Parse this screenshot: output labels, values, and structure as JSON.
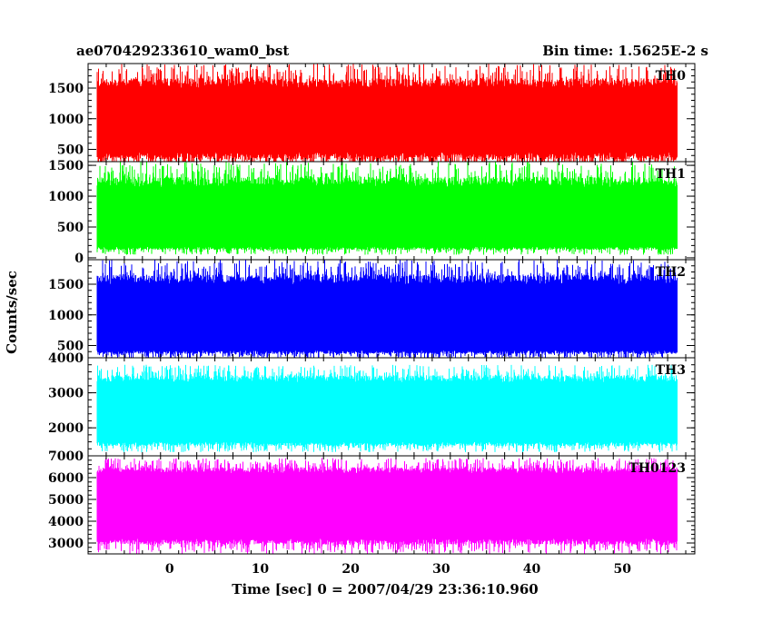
{
  "chart_data": {
    "type": "line",
    "title_left": "ae070429233610_wam0_bst",
    "title_right": "Bin time: 1.5625E-2 s",
    "xlabel": "Time [sec] 0 = 2007/04/29 23:36:10.960",
    "ylabel": "Counts/sec",
    "xlim": [
      -9,
      58
    ],
    "x_ticks": [
      0,
      10,
      20,
      30,
      40,
      50
    ],
    "x_range_data": [
      -8,
      56
    ],
    "grid": false,
    "panels": [
      {
        "name": "TH0",
        "color": "#ff0000",
        "ylim": [
          300,
          1900
        ],
        "y_ticks": [
          500,
          1000,
          1500
        ],
        "band": {
          "min": 150,
          "max": 1900,
          "core_low": 450,
          "core_high": 1500
        }
      },
      {
        "name": "TH1",
        "color": "#00ff00",
        "ylim": [
          -30,
          1560
        ],
        "y_ticks": [
          0,
          500,
          1000,
          1500
        ],
        "band": {
          "min": 50,
          "max": 1560,
          "core_low": 180,
          "core_high": 1150
        }
      },
      {
        "name": "TH2",
        "color": "#0000ff",
        "ylim": [
          300,
          1900
        ],
        "y_ticks": [
          500,
          1000,
          1500
        ],
        "band": {
          "min": 280,
          "max": 1900,
          "core_low": 420,
          "core_high": 1500
        }
      },
      {
        "name": "TH3",
        "color": "#00ffff",
        "ylim": [
          1200,
          4000
        ],
        "y_ticks": [
          2000,
          3000,
          4000
        ],
        "band": {
          "min": 1300,
          "max": 3800,
          "core_low": 1600,
          "core_high": 3300
        }
      },
      {
        "name": "TH0123",
        "color": "#ff00ff",
        "ylim": [
          2500,
          7000
        ],
        "y_ticks": [
          3000,
          4000,
          5000,
          6000,
          7000
        ],
        "band": {
          "min": 2500,
          "max": 6900,
          "core_low": 3200,
          "core_high": 6200
        }
      }
    ]
  }
}
